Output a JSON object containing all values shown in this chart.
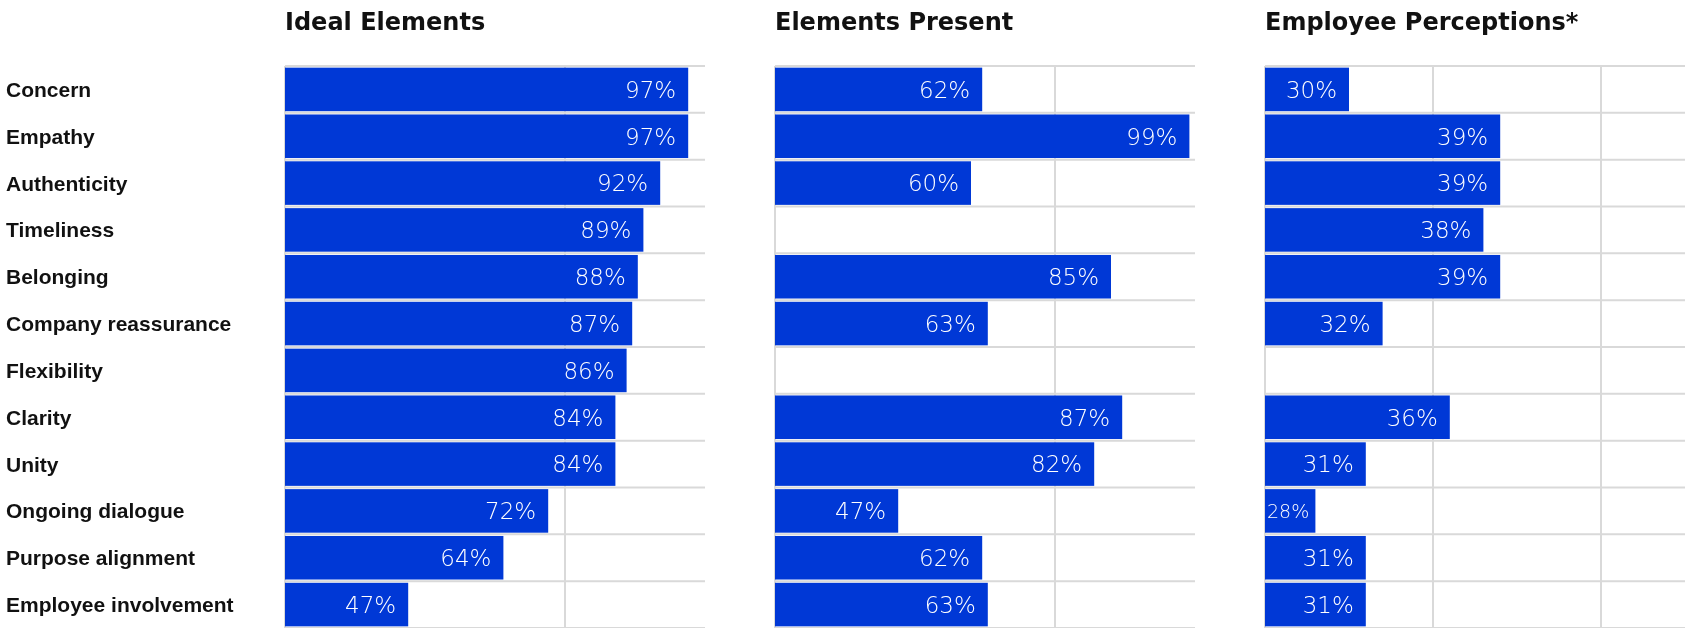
{
  "chart_data": [
    {
      "type": "bar",
      "orientation": "horizontal",
      "title": "Ideal Elements",
      "categories": [
        "Concern",
        "Empathy",
        "Authenticity",
        "Timeliness",
        "Belonging",
        "Company reassurance",
        "Flexibility",
        "Clarity",
        "Unity",
        "Ongoing dialogue",
        "Purpose alignment",
        "Employee involvement"
      ],
      "values": [
        97,
        97,
        92,
        89,
        88,
        87,
        86,
        84,
        84,
        72,
        64,
        47
      ],
      "value_labels": [
        "97%",
        "97%",
        "92%",
        "89%",
        "88%",
        "87%",
        "86%",
        "84%",
        "84%",
        "72%",
        "64%",
        "47%"
      ],
      "color": "#0038d6",
      "xlim": [
        25,
        100
      ],
      "xticks": [
        {
          "value": 25,
          "label": null
        },
        {
          "value": 75,
          "label": null
        }
      ],
      "grid": true,
      "tick_labels": "y"
    },
    {
      "type": "bar",
      "orientation": "horizontal",
      "title": "Elements Present",
      "categories": [
        null,
        null,
        null,
        null,
        null,
        null,
        null,
        null,
        null,
        null,
        null,
        null
      ],
      "values": [
        62,
        99,
        60,
        null,
        85,
        63,
        null,
        87,
        82,
        47,
        62,
        63
      ],
      "value_labels": [
        "62%",
        "99%",
        "60%",
        null,
        "85%",
        "63%",
        null,
        "87%",
        "82%",
        "47%",
        "62%",
        "63%"
      ],
      "color": "#0038d6",
      "xlim": [
        25,
        100
      ],
      "xticks": [
        {
          "value": 25,
          "label": null
        },
        {
          "value": 75,
          "label": null
        }
      ],
      "grid": true,
      "tick_labels": false
    },
    {
      "type": "bar",
      "orientation": "horizontal",
      "title": "Employee Perceptions*",
      "categories": [
        null,
        null,
        null,
        null,
        null,
        null,
        null,
        null,
        null,
        null,
        null,
        null
      ],
      "values": [
        30,
        39,
        39,
        38,
        39,
        32,
        null,
        36,
        31,
        28,
        31,
        31
      ],
      "value_labels": [
        "30%",
        "39%",
        "39%",
        "38%",
        "39%",
        "32%",
        null,
        "36%",
        "31%",
        "28%",
        "31%",
        "31%"
      ],
      "color": "#0038d6",
      "xlim": [
        25,
        50
      ],
      "xticks": [
        {
          "value": 25,
          "label": null
        },
        {
          "value": 35,
          "label": null
        },
        {
          "value": 45,
          "label": null
        }
      ],
      "grid": true,
      "tick_labels": false
    }
  ]
}
